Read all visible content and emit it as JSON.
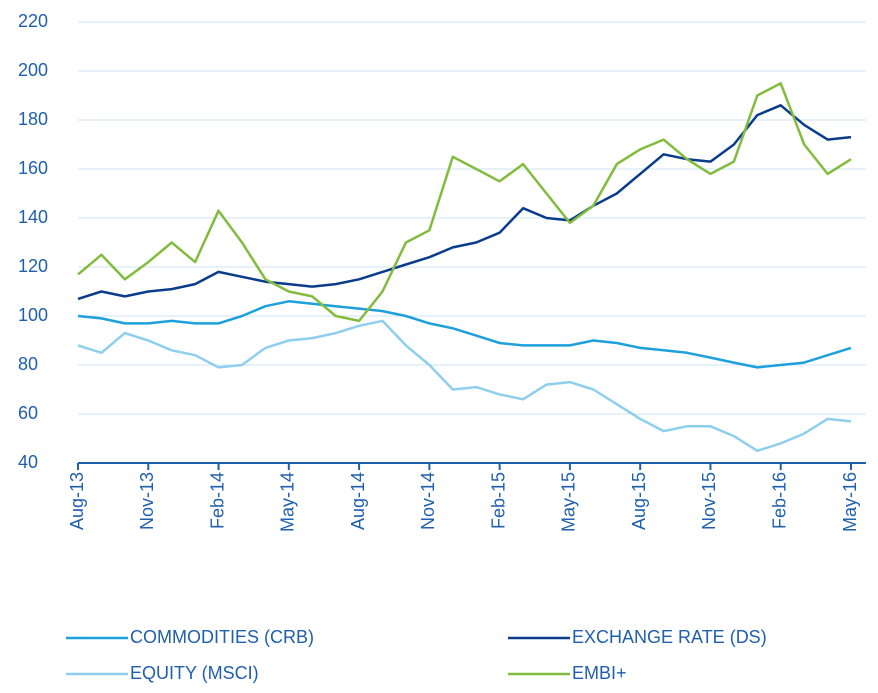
{
  "chart_data": {
    "type": "line",
    "categories": [
      "Aug-13",
      null,
      null,
      "Nov-13",
      null,
      null,
      "Feb-14",
      null,
      null,
      "May-14",
      null,
      null,
      "Aug-14",
      null,
      null,
      "Nov-14",
      null,
      null,
      "Feb-15",
      null,
      null,
      "May-15",
      null,
      null,
      "Aug-15",
      null,
      null,
      "Nov-15",
      null,
      null,
      "Feb-16",
      null,
      null,
      "May-16"
    ],
    "series": [
      {
        "name": "COMMODITIES (CRB)",
        "color": "#1ea0dc",
        "values": [
          100,
          99,
          97,
          97,
          98,
          97,
          97,
          100,
          104,
          106,
          105,
          104,
          103,
          102,
          100,
          97,
          95,
          92,
          89,
          88,
          88,
          88,
          90,
          89,
          87,
          86,
          85,
          83,
          81,
          79,
          80,
          81,
          84,
          87
        ]
      },
      {
        "name": "EXCHANGE RATE (DS)",
        "color": "#0a3c8c",
        "values": [
          107,
          110,
          108,
          110,
          111,
          113,
          118,
          116,
          114,
          113,
          112,
          113,
          115,
          118,
          121,
          124,
          128,
          130,
          134,
          144,
          140,
          139,
          145,
          150,
          158,
          166,
          164,
          163,
          170,
          182,
          186,
          178,
          172,
          173
        ]
      },
      {
        "name": "EQUITY (MSCI)",
        "color": "#8ecfee",
        "values": [
          88,
          85,
          93,
          90,
          86,
          84,
          79,
          80,
          87,
          90,
          91,
          93,
          96,
          98,
          88,
          80,
          70,
          71,
          68,
          66,
          72,
          73,
          70,
          64,
          58,
          53,
          55,
          55,
          51,
          45,
          48,
          52,
          58,
          57
        ]
      },
      {
        "name": "EMBI+",
        "color": "#82bc3c",
        "values": [
          117,
          125,
          115,
          122,
          130,
          122,
          143,
          130,
          115,
          110,
          108,
          100,
          98,
          110,
          130,
          135,
          165,
          160,
          155,
          162,
          150,
          138,
          145,
          162,
          168,
          172,
          164,
          158,
          163,
          190,
          195,
          170,
          158,
          164
        ]
      }
    ],
    "ylim": [
      40,
      220
    ],
    "yticks": [
      40,
      60,
      80,
      100,
      120,
      140,
      160,
      180,
      200,
      220
    ],
    "grid": true
  }
}
